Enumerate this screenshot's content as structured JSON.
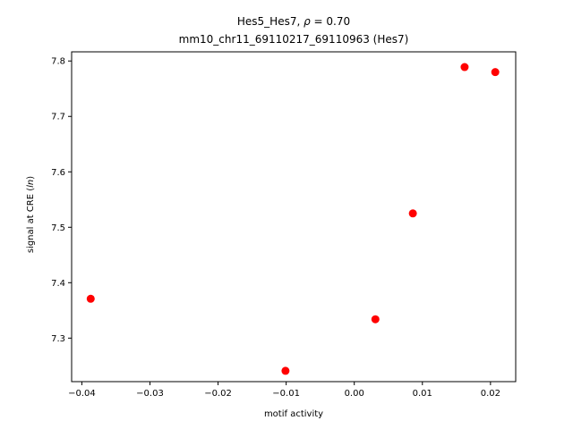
{
  "chart_data": {
    "type": "scatter",
    "title_line1_prefix": "Hes5_Hes7, ",
    "title_line1_symbol": "ρ",
    "title_line1_suffix": " = 0.70",
    "title_line2": "mm10_chr11_69110217_69110963 (Hes7)",
    "xlabel": "motif activity",
    "ylabel_prefix": "signal at CRE (",
    "ylabel_italic": "ln",
    "ylabel_suffix": ")",
    "xlim": [
      -0.0415,
      0.0237
    ],
    "ylim": [
      7.2215,
      7.8165
    ],
    "xticks": [
      -0.04,
      -0.03,
      -0.02,
      -0.01,
      0.0,
      0.01,
      0.02
    ],
    "xtick_labels": [
      "−0.04",
      "−0.03",
      "−0.02",
      "−0.01",
      "0.00",
      "0.01",
      "0.02"
    ],
    "yticks": [
      7.3,
      7.4,
      7.5,
      7.6,
      7.7,
      7.8
    ],
    "ytick_labels": [
      "7.3",
      "7.4",
      "7.5",
      "7.6",
      "7.7",
      "7.8"
    ],
    "grid": false,
    "marker_color": "#ff0000",
    "points": [
      {
        "x": -0.0387,
        "y": 7.371
      },
      {
        "x": -0.0101,
        "y": 7.241
      },
      {
        "x": 0.0031,
        "y": 7.334
      },
      {
        "x": 0.0086,
        "y": 7.525
      },
      {
        "x": 0.0162,
        "y": 7.789
      },
      {
        "x": 0.0207,
        "y": 7.78
      }
    ]
  }
}
